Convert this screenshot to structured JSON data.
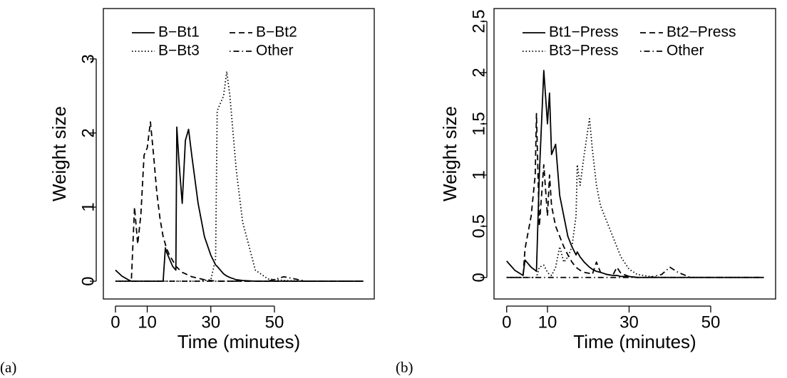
{
  "chart_data": [
    {
      "type": "line",
      "caption": "(a)",
      "x_label": "Time (minutes)",
      "y_label": "Weight size",
      "x": [
        0,
        2,
        4,
        5,
        6,
        7,
        8,
        9,
        10,
        11,
        12,
        13,
        14,
        15,
        15.7,
        16,
        17,
        18,
        19,
        19.3,
        20,
        21,
        22,
        23,
        24,
        26,
        28,
        30,
        31.5,
        32,
        34,
        35,
        36,
        38,
        40,
        44,
        48,
        53,
        60,
        78
      ],
      "series": [
        {
          "name": "B−Bt1",
          "color": "#000000",
          "dash": "solid",
          "values": [
            0.15,
            0.07,
            0.02,
            0,
            0,
            0,
            0,
            0,
            0,
            0,
            0,
            0,
            0,
            0,
            0.45,
            0.4,
            0.3,
            0.2,
            0.15,
            2.08,
            1.6,
            1.05,
            1.9,
            2.05,
            1.7,
            1.05,
            0.6,
            0.35,
            0.22,
            0.2,
            0.1,
            0.07,
            0.05,
            0.02,
            0.01,
            0,
            0,
            0,
            0,
            0
          ]
        },
        {
          "name": "B−Bt2",
          "color": "#000000",
          "dash": "dashed",
          "values": [
            0,
            0,
            0,
            0,
            1.0,
            0.5,
            0.9,
            1.7,
            1.8,
            2.15,
            1.7,
            1.2,
            0.85,
            0.6,
            0.5,
            0.45,
            0.35,
            0.28,
            0.2,
            0.19,
            0.16,
            0.12,
            0.1,
            0.08,
            0.06,
            0.04,
            0.02,
            0.01,
            0,
            0,
            0,
            0,
            0,
            0,
            0,
            0,
            0,
            0,
            0,
            0
          ]
        },
        {
          "name": "B−Bt3",
          "color": "#000000",
          "dash": "dotted",
          "values": [
            0,
            0,
            0,
            0,
            0,
            0,
            0,
            0,
            0,
            0,
            0,
            0,
            0,
            0,
            0,
            0,
            0,
            0,
            0,
            0,
            0,
            0,
            0,
            0,
            0,
            0,
            0.01,
            0.02,
            0.3,
            2.3,
            2.5,
            2.83,
            2.5,
            1.5,
            0.8,
            0.15,
            0.03,
            0.01,
            0,
            0
          ]
        },
        {
          "name": "Other",
          "color": "#000000",
          "dash": "dotdash",
          "values": [
            0,
            0,
            0,
            0,
            0,
            0,
            0,
            0,
            0,
            0,
            0,
            0,
            0,
            0,
            0,
            0,
            0,
            0,
            0,
            0,
            0,
            0,
            0,
            0,
            0,
            0,
            0,
            0,
            0,
            0,
            0,
            0,
            0,
            0,
            0,
            0,
            0,
            0.06,
            0,
            0
          ]
        }
      ],
      "xlim": [
        -3.8,
        81.4
      ],
      "xticks": [
        0,
        10,
        30,
        50
      ],
      "ylim": [
        -0.24,
        3.68
      ],
      "yticks": [
        0,
        1,
        2,
        3
      ],
      "legend": "top"
    },
    {
      "type": "line",
      "caption": "(b)",
      "x_label": "Time (minutes)",
      "y_label": "Weight size",
      "x": [
        0,
        2,
        4,
        4.5,
        6,
        7,
        7.3,
        8,
        9.1,
        10,
        10.5,
        11,
        12,
        13,
        14,
        15,
        16,
        17,
        17.3,
        18,
        19,
        20.3,
        21,
        22,
        23,
        24.5,
        26,
        27,
        28,
        30,
        32,
        35,
        38,
        40,
        42,
        45,
        50,
        55,
        63
      ],
      "series": [
        {
          "name": "Bt1−Press",
          "color": "#000000",
          "dash": "solid",
          "values": [
            0.16,
            0.07,
            0.02,
            0.17,
            0.1,
            0.07,
            0.06,
            1.0,
            2.02,
            1.5,
            1.8,
            1.2,
            1.3,
            0.8,
            0.6,
            0.4,
            0.3,
            0.22,
            0.25,
            0.2,
            0.15,
            0.1,
            0.08,
            0.06,
            0.05,
            0.03,
            0.02,
            0.02,
            0.01,
            0.01,
            0,
            0,
            0,
            0,
            0,
            0,
            0,
            0,
            0
          ]
        },
        {
          "name": "Bt2−Press",
          "color": "#000000",
          "dash": "dashed",
          "values": [
            0,
            0,
            0,
            0.28,
            0.6,
            1.0,
            1.6,
            0.5,
            1.1,
            0.6,
            1.0,
            0.7,
            0.5,
            0.4,
            0.3,
            0.22,
            0.15,
            0.1,
            0.09,
            0.07,
            0.05,
            0.04,
            0.03,
            0.15,
            0.05,
            0.03,
            0.02,
            0.1,
            0.04,
            0.01,
            0,
            0,
            0,
            0,
            0,
            0,
            0,
            0,
            0
          ]
        },
        {
          "name": "Bt3−Press",
          "color": "#000000",
          "dash": "dotted",
          "values": [
            0,
            0,
            0,
            0,
            0,
            0,
            0,
            0.1,
            0.12,
            0.05,
            0.03,
            0.02,
            0.1,
            0.3,
            0.15,
            0.2,
            0.3,
            0.6,
            1.1,
            0.9,
            1.2,
            1.55,
            1.25,
            0.9,
            0.7,
            0.55,
            0.4,
            0.3,
            0.2,
            0.08,
            0.03,
            0.01,
            0,
            0,
            0,
            0,
            0,
            0,
            0
          ]
        },
        {
          "name": "Other",
          "color": "#000000",
          "dash": "dotdash",
          "values": [
            0,
            0,
            0,
            0,
            0,
            0,
            0,
            0,
            0,
            0,
            0,
            0,
            0,
            0,
            0,
            0,
            0,
            0,
            0,
            0,
            0,
            0,
            0,
            0,
            0,
            0,
            0,
            0,
            0,
            0,
            0,
            0,
            0.03,
            0.1,
            0.05,
            0,
            0,
            0,
            0
          ]
        }
      ],
      "xlim": [
        -3.1,
        65.9
      ],
      "xticks": [
        0,
        10,
        30,
        50
      ],
      "ylim": [
        -0.21,
        2.625
      ],
      "yticks": [
        0,
        0.5,
        1,
        1.5,
        2,
        2.5
      ],
      "legend": "top"
    }
  ]
}
